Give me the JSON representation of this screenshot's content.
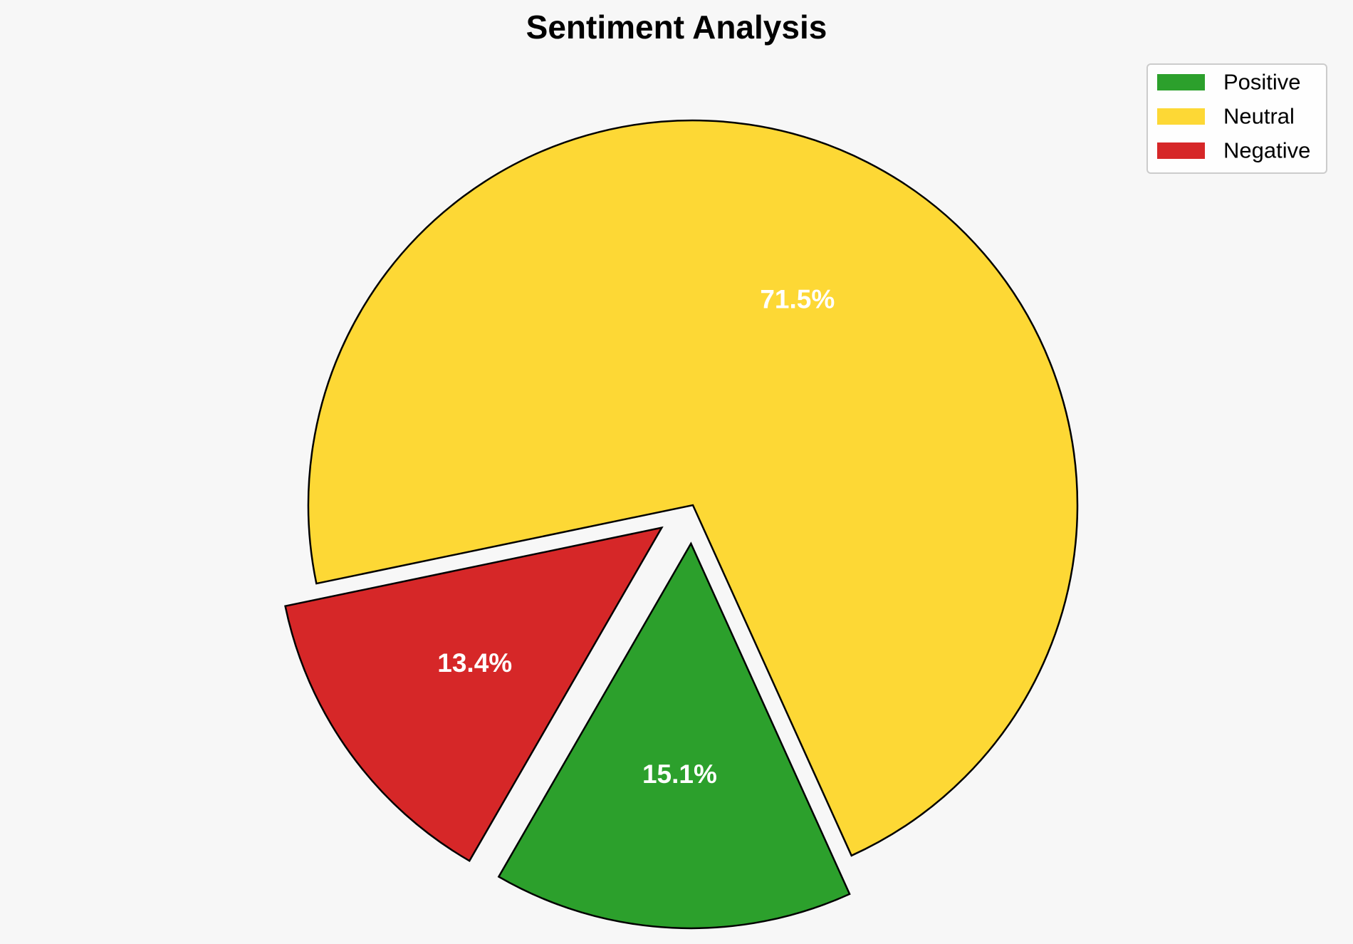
{
  "chart_data": {
    "type": "pie",
    "title": "Sentiment Analysis",
    "slices": [
      {
        "name": "Positive",
        "value": 15.1,
        "label": "15.1%",
        "color": "#2ca02c",
        "exploded": true
      },
      {
        "name": "Neutral",
        "value": 71.5,
        "label": "71.5%",
        "color": "#fdd835",
        "exploded": false
      },
      {
        "name": "Negative",
        "value": 13.4,
        "label": "13.4%",
        "color": "#d62728",
        "exploded": true
      }
    ],
    "legend_placement": "top-right"
  },
  "colors": {
    "background": "#f7f7f7",
    "slice_edge": "#000000",
    "label_text": "#ffffff"
  }
}
